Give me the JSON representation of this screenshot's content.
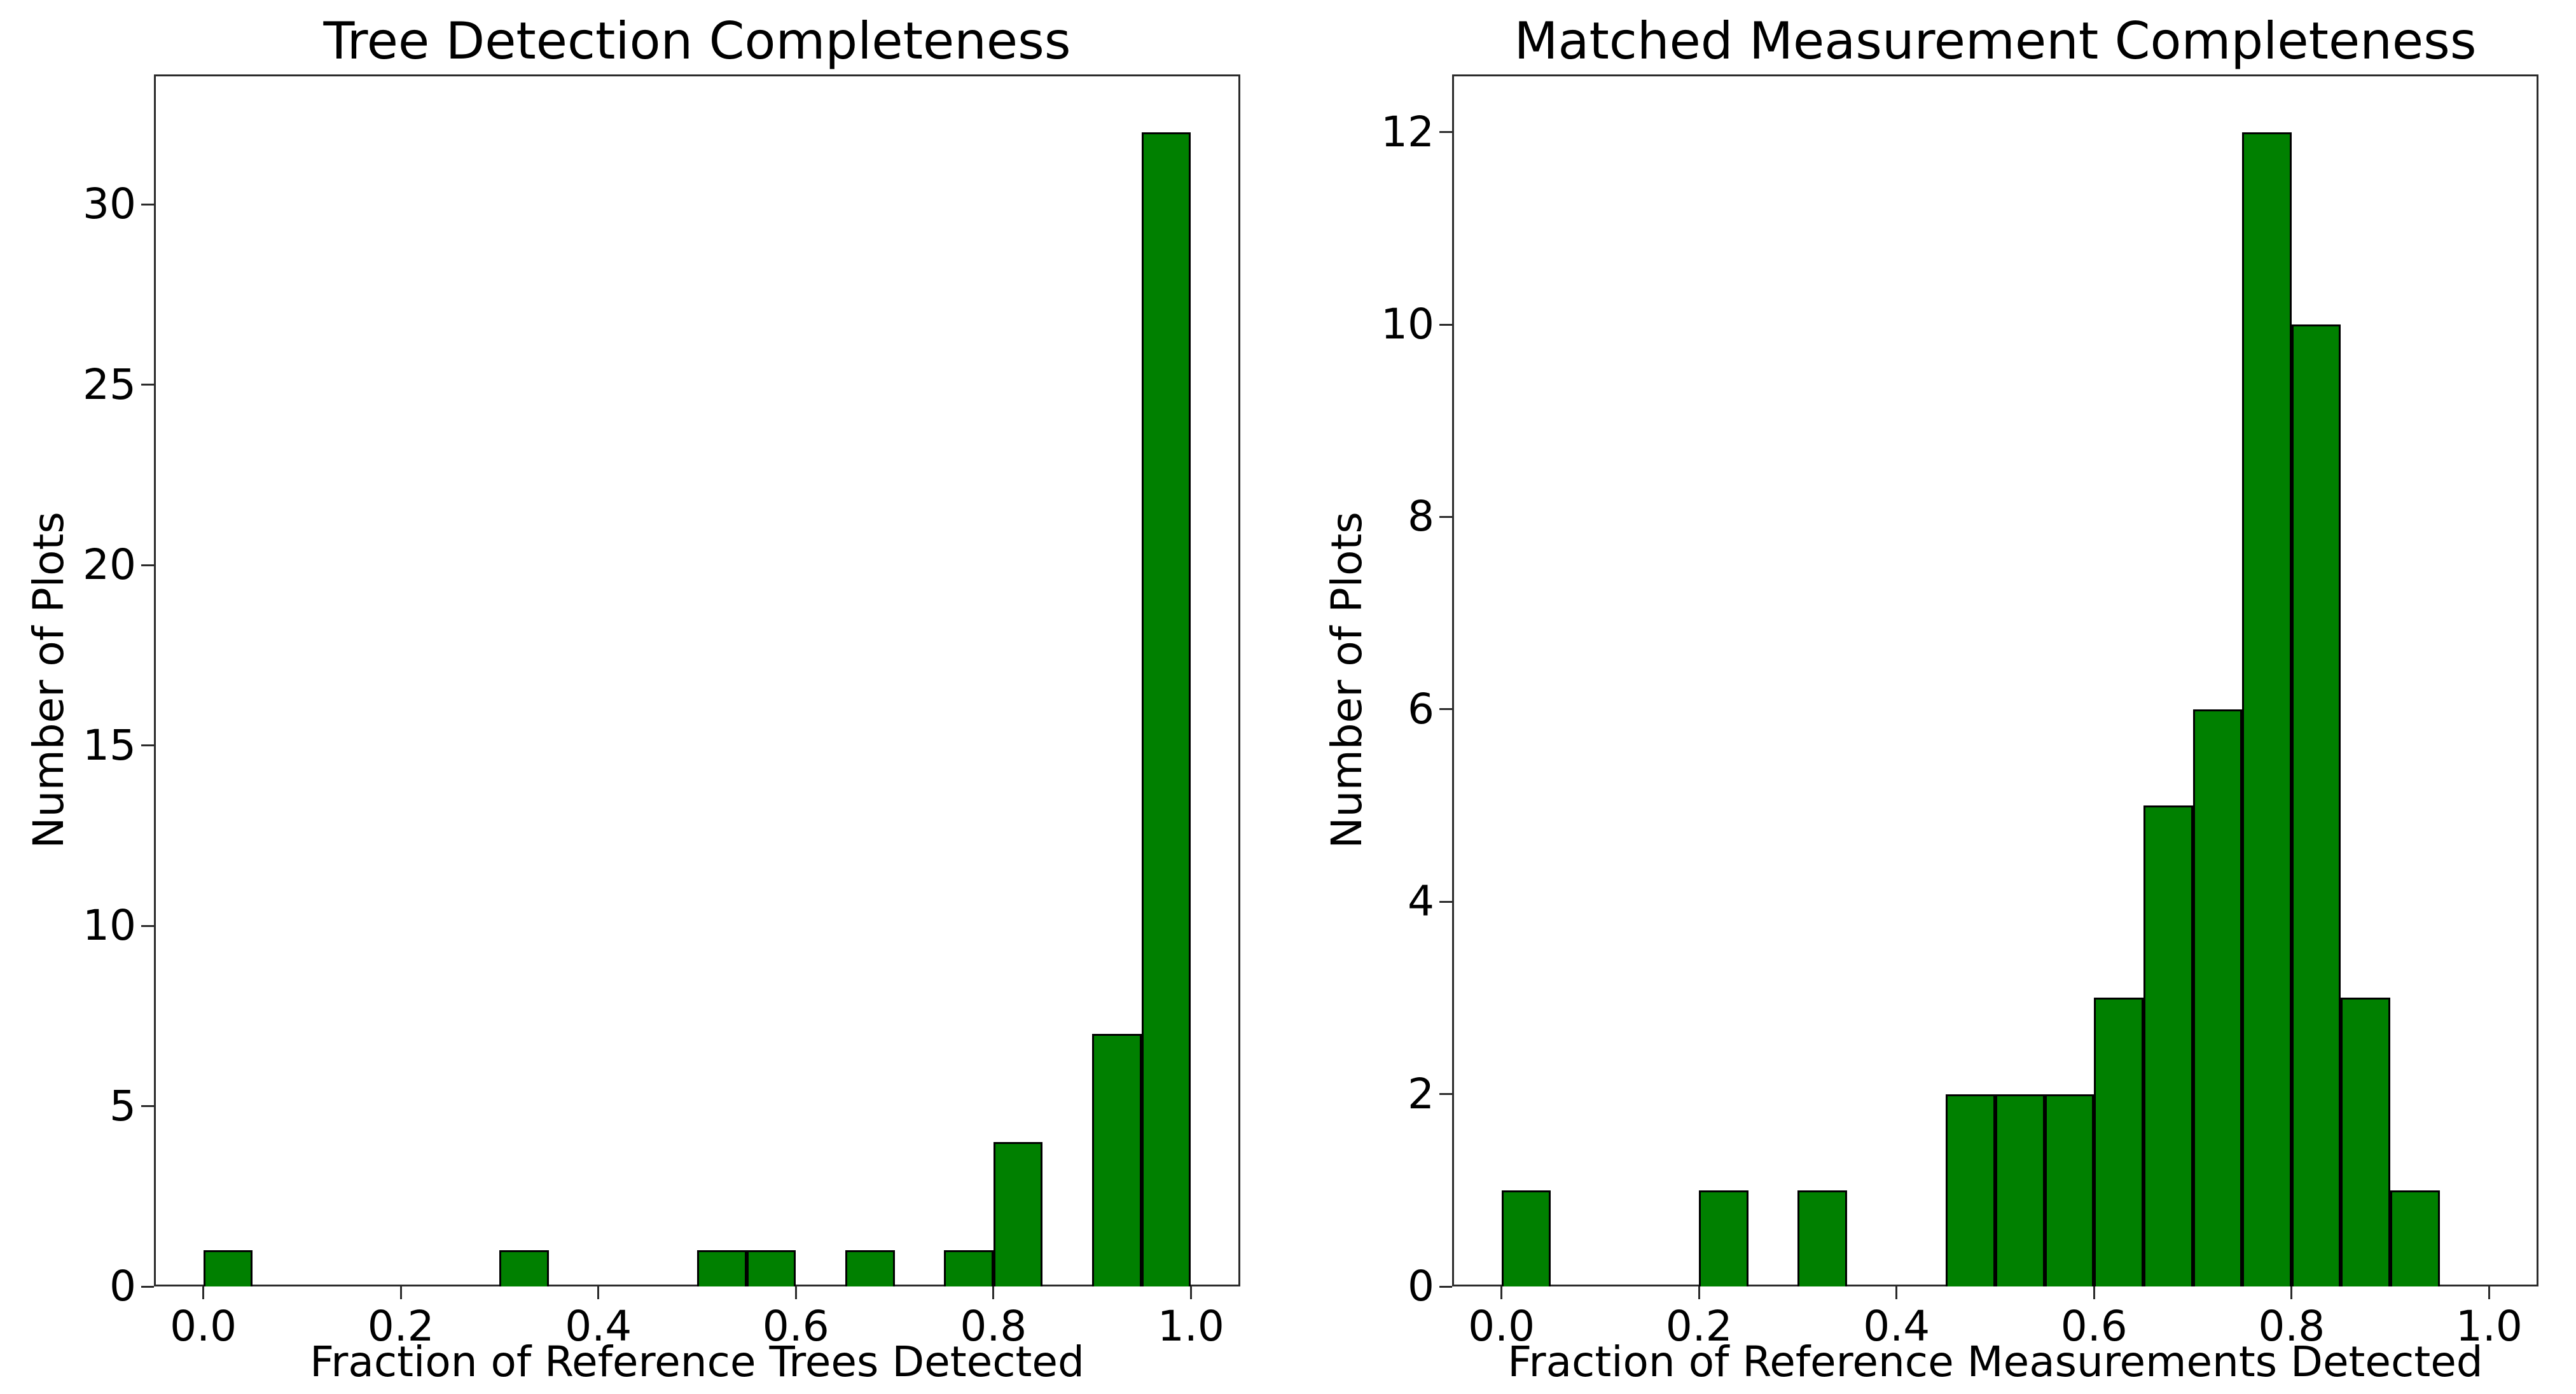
{
  "figure": {
    "background": "#ffffff",
    "bar_fill": "#008000",
    "bar_edge": "#000000",
    "axis_color": "#2b2b2b",
    "text_color": "#000000"
  },
  "chart_data": [
    {
      "type": "bar",
      "subtype": "histogram",
      "title": "Tree Detection Completeness",
      "xlabel": "Fraction of Reference Trees Detected",
      "ylabel": "Number of Plots",
      "bin_start": 0.0,
      "bin_width": 0.05,
      "bin_edges": [
        0.0,
        0.05,
        0.1,
        0.15,
        0.2,
        0.25,
        0.3,
        0.35,
        0.4,
        0.45,
        0.5,
        0.55,
        0.6,
        0.65,
        0.7,
        0.75,
        0.8,
        0.85,
        0.9,
        0.95,
        1.0
      ],
      "counts": [
        1,
        0,
        0,
        0,
        0,
        0,
        1,
        0,
        0,
        0,
        1,
        1,
        0,
        1,
        0,
        1,
        4,
        0,
        7,
        32
      ],
      "xlim": [
        -0.05,
        1.05
      ],
      "ylim": [
        0,
        33.6
      ],
      "xtick_labels": [
        "0.0",
        "0.2",
        "0.4",
        "0.6",
        "0.8",
        "1.0"
      ],
      "xtick_values": [
        0.0,
        0.2,
        0.4,
        0.6,
        0.8,
        1.0
      ],
      "ytick_values": [
        0,
        5,
        10,
        15,
        20,
        25,
        30
      ],
      "grid": false,
      "legend": false
    },
    {
      "type": "bar",
      "subtype": "histogram",
      "title": "Matched Measurement Completeness",
      "xlabel": "Fraction of Reference Measurements Detected",
      "ylabel": "Number of Plots",
      "bin_start": 0.0,
      "bin_width": 0.05,
      "bin_edges": [
        0.0,
        0.05,
        0.1,
        0.15,
        0.2,
        0.25,
        0.3,
        0.35,
        0.4,
        0.45,
        0.5,
        0.55,
        0.6,
        0.65,
        0.7,
        0.75,
        0.8,
        0.85,
        0.9,
        0.95,
        1.0
      ],
      "counts": [
        1,
        0,
        0,
        0,
        1,
        0,
        1,
        0,
        0,
        2,
        2,
        2,
        3,
        5,
        6,
        12,
        10,
        3,
        1,
        0
      ],
      "xlim": [
        -0.05,
        1.05
      ],
      "ylim": [
        0,
        12.6
      ],
      "xtick_labels": [
        "0.0",
        "0.2",
        "0.4",
        "0.6",
        "0.8",
        "1.0"
      ],
      "xtick_values": [
        0.0,
        0.2,
        0.4,
        0.6,
        0.8,
        1.0
      ],
      "ytick_values": [
        0,
        2,
        4,
        6,
        8,
        10,
        12
      ],
      "grid": false,
      "legend": false
    }
  ]
}
